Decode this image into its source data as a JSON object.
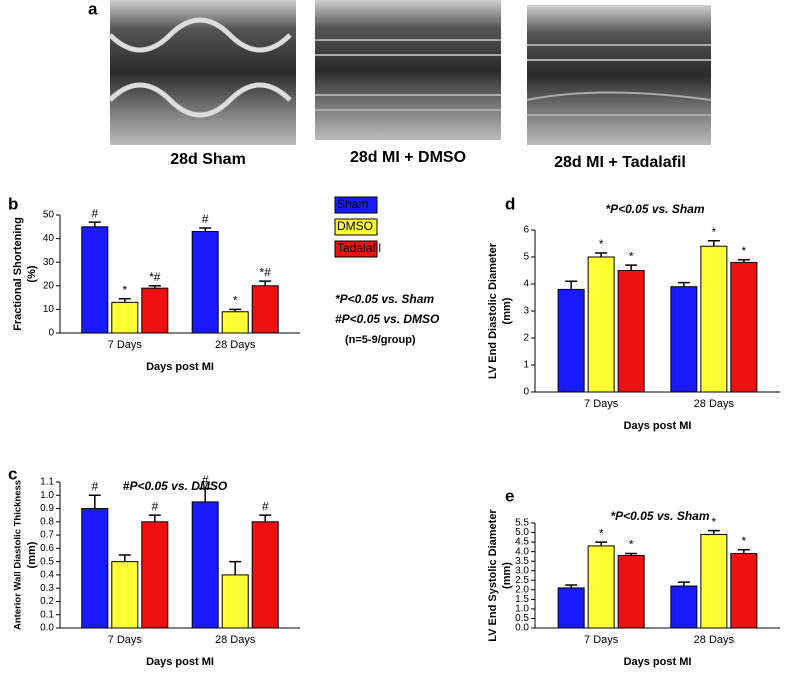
{
  "panel_a": {
    "label": "a",
    "captions": [
      "28d Sham",
      "28d MI + DMSO",
      "28d MI + Tadalafil"
    ]
  },
  "chart_data": [
    {
      "type": "bar",
      "label": "b",
      "ylabel": [
        "Fractional  Shortening",
        "(%)"
      ],
      "xlabel": "Days post MI",
      "categories": [
        "7 Days",
        "28 Days"
      ],
      "ylim": [
        0,
        50
      ],
      "yticks": [
        0,
        10,
        20,
        30,
        40,
        50
      ],
      "legend": "right",
      "notes": [
        "*P<0.05 vs. Sham",
        "#P<0.05 vs. DMSO",
        "(n=5-9/group)"
      ],
      "series": [
        {
          "name": "Sham",
          "color": "#1a1aff",
          "values": [
            45,
            43
          ],
          "errors": [
            2,
            1.5
          ],
          "markers": [
            "#",
            "#"
          ]
        },
        {
          "name": "DMSO",
          "color": "#ffff33",
          "values": [
            13,
            9
          ],
          "errors": [
            1.5,
            1
          ],
          "markers": [
            "*",
            "*"
          ]
        },
        {
          "name": "Tadalafil",
          "color": "#ee1111",
          "values": [
            19,
            20
          ],
          "errors": [
            1,
            2
          ],
          "markers": [
            "*#",
            "*#"
          ]
        }
      ]
    },
    {
      "type": "bar",
      "label": "c",
      "title": "#P<0.05 vs. DMSO",
      "ylabel": [
        "Anterior Wall Diastolic Thickness",
        "(mm)"
      ],
      "xlabel": "Days post MI",
      "categories": [
        "7 Days",
        "28 Days"
      ],
      "ylim": [
        0,
        1.1
      ],
      "yticks": [
        {
          "value": 0,
          "label": "0.0"
        },
        0.1,
        0.2,
        0.3,
        0.4,
        0.5,
        0.6,
        0.7,
        0.8,
        0.9,
        {
          "value": 1,
          "label": "1.0"
        },
        1.1
      ],
      "series": [
        {
          "name": "Sham",
          "color": "#1a1aff",
          "values": [
            0.9,
            0.95
          ],
          "errors": [
            0.1,
            0.1
          ],
          "markers": [
            "#",
            "#"
          ]
        },
        {
          "name": "DMSO",
          "color": "#ffff33",
          "values": [
            0.5,
            0.4
          ],
          "errors": [
            0.05,
            0.1
          ],
          "markers": [
            null,
            null
          ]
        },
        {
          "name": "Tadalafil",
          "color": "#ee1111",
          "values": [
            0.8,
            0.8
          ],
          "errors": [
            0.05,
            0.05
          ],
          "markers": [
            "#",
            "#"
          ]
        }
      ]
    },
    {
      "type": "bar",
      "label": "d",
      "title": "*P<0.05 vs. Sham",
      "ylabel": [
        "LV End  Diastolic Diameter",
        "(mm)"
      ],
      "xlabel": "Days post MI",
      "categories": [
        "7 Days",
        "28 Days"
      ],
      "ylim": [
        0,
        6
      ],
      "yticks": [
        0,
        1,
        2,
        3,
        4,
        5,
        6
      ],
      "series": [
        {
          "name": "Sham",
          "color": "#1a1aff",
          "values": [
            3.8,
            3.9
          ],
          "errors": [
            0.3,
            0.15
          ],
          "markers": [
            null,
            null
          ]
        },
        {
          "name": "DMSO",
          "color": "#ffff33",
          "values": [
            5.0,
            5.4
          ],
          "errors": [
            0.15,
            0.2
          ],
          "markers": [
            "*",
            "*"
          ]
        },
        {
          "name": "Tadalafil",
          "color": "#ee1111",
          "values": [
            4.5,
            4.8
          ],
          "errors": [
            0.2,
            0.1
          ],
          "markers": [
            "*",
            "*"
          ]
        }
      ]
    },
    {
      "type": "bar",
      "label": "e",
      "title": "*P<0.05 vs. Sham",
      "ylabel": [
        "LV End Systolic Diameter",
        "(mm)"
      ],
      "xlabel": "Days post MI",
      "categories": [
        "7 Days",
        "28 Days"
      ],
      "ylim": [
        0,
        5.5
      ],
      "yticks": [
        {
          "value": 0,
          "label": "0.0"
        },
        0.5,
        {
          "value": 1,
          "label": "1.0"
        },
        1.5,
        {
          "value": 2,
          "label": "2.0"
        },
        2.5,
        {
          "value": 3,
          "label": "3.0"
        },
        3.5,
        {
          "value": 4,
          "label": "4.0"
        },
        4.5,
        {
          "value": 5,
          "label": "5.0"
        },
        5.5
      ],
      "series": [
        {
          "name": "Sham",
          "color": "#1a1aff",
          "values": [
            2.1,
            2.2
          ],
          "errors": [
            0.15,
            0.2
          ],
          "markers": [
            null,
            null
          ]
        },
        {
          "name": "DMSO",
          "color": "#ffff33",
          "values": [
            4.3,
            4.9
          ],
          "errors": [
            0.2,
            0.2
          ],
          "markers": [
            "*",
            "*"
          ]
        },
        {
          "name": "Tadalafil",
          "color": "#ee1111",
          "values": [
            3.8,
            3.9
          ],
          "errors": [
            0.1,
            0.2
          ],
          "markers": [
            "*",
            "*"
          ]
        }
      ]
    }
  ]
}
